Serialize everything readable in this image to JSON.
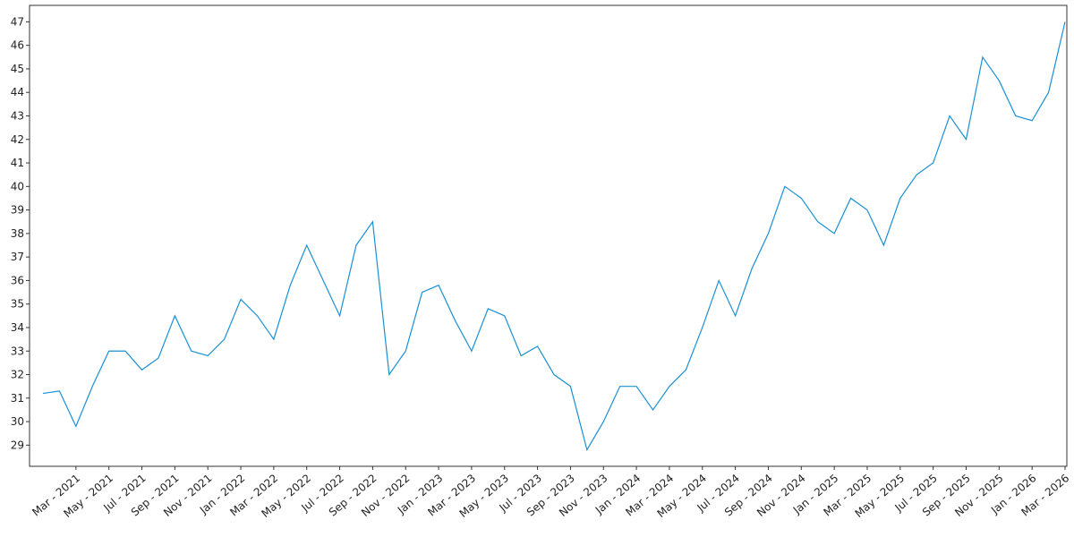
{
  "chart_data": {
    "type": "line",
    "x": [
      "2021-01",
      "2021-02",
      "2021-03",
      "2021-04",
      "2021-05",
      "2021-06",
      "2021-07",
      "2021-08",
      "2021-09",
      "2021-10",
      "2021-11",
      "2021-12",
      "2022-01",
      "2022-02",
      "2022-03",
      "2022-04",
      "2022-05",
      "2022-06",
      "2022-07",
      "2022-08",
      "2022-09",
      "2022-10",
      "2022-11",
      "2022-12",
      "2023-01",
      "2023-02",
      "2023-03",
      "2023-04",
      "2023-05",
      "2023-06",
      "2023-07",
      "2023-08",
      "2023-09",
      "2023-10",
      "2023-11",
      "2023-12",
      "2024-01",
      "2024-02",
      "2024-03",
      "2024-04",
      "2024-05",
      "2024-06",
      "2024-07",
      "2024-08",
      "2024-09",
      "2024-10",
      "2024-11",
      "2024-12",
      "2025-01",
      "2025-02",
      "2025-03",
      "2025-04",
      "2025-05",
      "2025-06",
      "2025-07",
      "2025-08",
      "2025-09",
      "2025-10",
      "2025-11",
      "2025-12",
      "2026-01",
      "2026-02",
      "2026-03"
    ],
    "series": [
      {
        "color": "#1a90d4",
        "values": [
          31.2,
          31.3,
          29.8,
          31.5,
          33.0,
          33.0,
          32.2,
          32.7,
          34.5,
          33.0,
          32.8,
          33.5,
          35.2,
          34.5,
          33.5,
          35.8,
          37.5,
          36.0,
          34.5,
          37.5,
          38.5,
          32.0,
          33.0,
          35.5,
          35.8,
          34.3,
          33.0,
          34.8,
          34.5,
          32.8,
          33.2,
          32.0,
          31.5,
          28.8,
          30.0,
          31.5,
          31.5,
          30.5,
          31.5,
          32.2,
          34.0,
          36.0,
          34.5,
          36.5,
          38.0,
          40.0,
          39.5,
          38.5,
          38.0,
          39.5,
          39.0,
          37.5,
          39.5,
          40.5,
          41.0,
          43.0,
          42.0,
          45.5,
          44.5,
          43.0,
          42.8,
          44.0,
          47.0
        ]
      }
    ],
    "ylim": [
      28.1,
      47.7
    ],
    "yticks": [
      29,
      30,
      31,
      32,
      33,
      34,
      35,
      36,
      37,
      38,
      39,
      40,
      41,
      42,
      43,
      44,
      45,
      46,
      47
    ],
    "xlim": [
      "2021-01",
      "2026-03"
    ],
    "xticks": [
      {
        "value": "2021-03",
        "label": "Mar - 2021"
      },
      {
        "value": "2021-05",
        "label": "May - 2021"
      },
      {
        "value": "2021-07",
        "label": "Jul - 2021"
      },
      {
        "value": "2021-09",
        "label": "Sep - 2021"
      },
      {
        "value": "2021-11",
        "label": "Nov - 2021"
      },
      {
        "value": "2022-01",
        "label": "Jan - 2022"
      },
      {
        "value": "2022-03",
        "label": "Mar - 2022"
      },
      {
        "value": "2022-05",
        "label": "May - 2022"
      },
      {
        "value": "2022-07",
        "label": "Jul - 2022"
      },
      {
        "value": "2022-09",
        "label": "Sep - 2022"
      },
      {
        "value": "2022-11",
        "label": "Nov - 2022"
      },
      {
        "value": "2023-01",
        "label": "Jan - 2023"
      },
      {
        "value": "2023-03",
        "label": "Mar - 2023"
      },
      {
        "value": "2023-05",
        "label": "May - 2023"
      },
      {
        "value": "2023-07",
        "label": "Jul - 2023"
      },
      {
        "value": "2023-09",
        "label": "Sep - 2023"
      },
      {
        "value": "2023-11",
        "label": "Nov - 2023"
      },
      {
        "value": "2024-01",
        "label": "Jan - 2024"
      },
      {
        "value": "2024-03",
        "label": "Mar - 2024"
      },
      {
        "value": "2024-05",
        "label": "May - 2024"
      },
      {
        "value": "2024-07",
        "label": "Jul - 2024"
      },
      {
        "value": "2024-09",
        "label": "Sep - 2024"
      },
      {
        "value": "2024-11",
        "label": "Nov - 2024"
      },
      {
        "value": "2025-01",
        "label": "Jan - 2025"
      },
      {
        "value": "2025-03",
        "label": "Mar - 2025"
      },
      {
        "value": "2025-05",
        "label": "May - 2025"
      },
      {
        "value": "2025-07",
        "label": "Jul - 2025"
      },
      {
        "value": "2025-09",
        "label": "Sep - 2025"
      },
      {
        "value": "2025-11",
        "label": "Nov - 2025"
      },
      {
        "value": "2026-01",
        "label": "Jan - 2026"
      },
      {
        "value": "2026-03",
        "label": "Mar - 2026"
      }
    ]
  }
}
